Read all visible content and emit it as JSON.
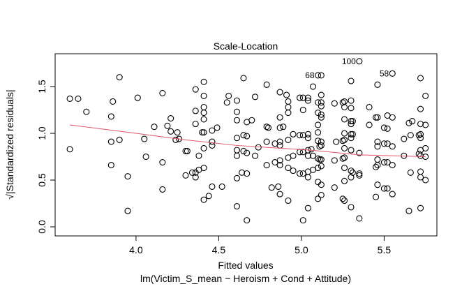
{
  "chart_data": {
    "type": "scatter",
    "title": "Scale-Location",
    "xlabel": "Fitted values",
    "subtitle": "lm(Victim_S_mean ~ Heroism + Cond + Attitude)",
    "ylabel": "√|Standardized residuals|",
    "xlim": [
      3.511,
      5.819
    ],
    "ylim": [
      -0.097,
      1.851
    ],
    "xticks": [
      4.0,
      4.5,
      5.0,
      5.5
    ],
    "xtick_labels": [
      "4.0",
      "4.5",
      "5.0",
      "5.5"
    ],
    "yticks": [
      0.0,
      0.5,
      1.0,
      1.5
    ],
    "ytick_labels": [
      "0.0",
      "0.5",
      "1.0",
      "1.5"
    ],
    "grid": false,
    "smooth_color": "#DF536B",
    "smooth": [
      [
        3.6,
        1.09
      ],
      [
        4.0,
        1.0
      ],
      [
        4.3,
        0.93
      ],
      [
        4.61,
        0.87
      ],
      [
        5.055,
        0.82
      ],
      [
        5.35,
        0.77
      ],
      [
        5.75,
        0.75
      ]
    ],
    "labeled_points": [
      {
        "label": "68",
        "x": 5.1,
        "y": 1.62
      },
      {
        "label": "100",
        "x": 5.35,
        "y": 1.77
      },
      {
        "label": "58",
        "x": 5.55,
        "y": 1.64
      }
    ],
    "points": [
      [
        3.6,
        1.37
      ],
      [
        3.65,
        1.37
      ],
      [
        3.9,
        1.6
      ],
      [
        3.7,
        1.23
      ],
      [
        3.86,
        1.34
      ],
      [
        3.85,
        1.18
      ],
      [
        4.01,
        1.38
      ],
      [
        4.16,
        1.43
      ],
      [
        4.21,
        1.16
      ],
      [
        4.11,
        1.07
      ],
      [
        4.19,
        1.08
      ],
      [
        4.21,
        1.02
      ],
      [
        4.25,
        1.01
      ],
      [
        4.24,
        0.93
      ],
      [
        4.26,
        0.94
      ],
      [
        3.6,
        0.83
      ],
      [
        3.85,
        0.91
      ],
      [
        3.9,
        0.93
      ],
      [
        4.05,
        0.94
      ],
      [
        4.06,
        0.75
      ],
      [
        4.16,
        0.69
      ],
      [
        3.85,
        0.66
      ],
      [
        3.95,
        0.54
      ],
      [
        4.3,
        0.55
      ],
      [
        4.16,
        0.4
      ],
      [
        3.95,
        0.17
      ],
      [
        4.3,
        0.81
      ],
      [
        4.36,
        1.47
      ],
      [
        4.41,
        1.55
      ],
      [
        4.41,
        1.4
      ],
      [
        4.36,
        1.24
      ],
      [
        4.41,
        1.28
      ],
      [
        4.41,
        1.22
      ],
      [
        4.41,
        1.15
      ],
      [
        4.36,
        1.1
      ],
      [
        4.4,
        1.01
      ],
      [
        4.41,
        1.01
      ],
      [
        4.46,
        1.03
      ],
      [
        4.49,
        1.06
      ],
      [
        4.46,
        0.91
      ],
      [
        4.46,
        0.87
      ],
      [
        4.31,
        0.81
      ],
      [
        4.41,
        0.84
      ],
      [
        4.38,
        0.76
      ],
      [
        4.34,
        0.58
      ],
      [
        4.36,
        0.58
      ],
      [
        4.36,
        0.53
      ],
      [
        4.38,
        0.61
      ],
      [
        4.41,
        0.63
      ],
      [
        4.46,
        0.43
      ],
      [
        4.52,
        0.43
      ],
      [
        4.44,
        0.33
      ],
      [
        4.41,
        0.29
      ],
      [
        4.65,
        1.59
      ],
      [
        4.56,
        1.4
      ],
      [
        4.55,
        1.33
      ],
      [
        4.61,
        1.35
      ],
      [
        4.61,
        1.23
      ],
      [
        4.61,
        1.14
      ],
      [
        4.61,
        0.95
      ],
      [
        4.61,
        0.82
      ],
      [
        4.61,
        0.76
      ],
      [
        4.61,
        0.52
      ],
      [
        4.61,
        0.22
      ],
      [
        4.67,
        1.12
      ],
      [
        4.7,
        1.14
      ],
      [
        4.65,
        0.98
      ],
      [
        4.67,
        0.97
      ],
      [
        4.67,
        0.79
      ],
      [
        4.65,
        0.81
      ],
      [
        4.72,
        0.76
      ],
      [
        4.74,
        0.85
      ],
      [
        4.64,
        0.58
      ],
      [
        4.67,
        0.57
      ],
      [
        4.67,
        0.07
      ],
      [
        4.72,
        1.39
      ],
      [
        4.79,
        1.52
      ],
      [
        4.79,
        1.07
      ],
      [
        4.8,
        1.06
      ],
      [
        4.79,
        0.91
      ],
      [
        4.79,
        0.66
      ],
      [
        4.82,
        0.42
      ],
      [
        4.87,
        1.44
      ],
      [
        4.87,
        1.17
      ],
      [
        4.87,
        1.06
      ],
      [
        4.89,
        1.07
      ],
      [
        4.87,
        0.91
      ],
      [
        4.84,
        0.89
      ],
      [
        4.87,
        0.87
      ],
      [
        4.87,
        0.71
      ],
      [
        4.87,
        0.66
      ],
      [
        4.84,
        0.69
      ],
      [
        4.86,
        0.43
      ],
      [
        4.87,
        0.35
      ],
      [
        4.91,
        1.41
      ],
      [
        4.92,
        1.34
      ],
      [
        4.92,
        1.28
      ],
      [
        4.92,
        1.22
      ],
      [
        4.92,
        0.93
      ],
      [
        4.92,
        0.74
      ],
      [
        4.95,
        0.76
      ],
      [
        4.92,
        0.63
      ],
      [
        4.95,
        0.6
      ],
      [
        4.92,
        0.28
      ],
      [
        4.95,
        0.99
      ],
      [
        4.99,
        1.38
      ],
      [
        5.01,
        1.38
      ],
      [
        5.01,
        1.25
      ],
      [
        4.99,
        0.98
      ],
      [
        5.01,
        0.98
      ],
      [
        4.99,
        0.8
      ],
      [
        5.01,
        0.8
      ],
      [
        4.99,
        0.57
      ],
      [
        5.01,
        0.57
      ],
      [
        5.01,
        0.07
      ],
      [
        5.04,
        1.38
      ],
      [
        5.04,
        1.35
      ],
      [
        5.07,
        1.5
      ],
      [
        5.04,
        0.99
      ],
      [
        5.04,
        0.95
      ],
      [
        5.04,
        0.82
      ],
      [
        5.04,
        0.76
      ],
      [
        5.06,
        0.83
      ],
      [
        5.04,
        0.59
      ],
      [
        5.07,
        0.61
      ],
      [
        5.04,
        0.53
      ],
      [
        5.04,
        0.2
      ],
      [
        5.12,
        1.62
      ],
      [
        5.12,
        1.41
      ],
      [
        5.1,
        1.33
      ],
      [
        5.12,
        1.33
      ],
      [
        5.12,
        1.29
      ],
      [
        5.1,
        1.22
      ],
      [
        5.12,
        1.2
      ],
      [
        5.12,
        1.17
      ],
      [
        5.1,
        1.09
      ],
      [
        5.1,
        1.01
      ],
      [
        5.1,
        0.92
      ],
      [
        5.12,
        0.91
      ],
      [
        5.12,
        0.87
      ],
      [
        5.11,
        0.86
      ],
      [
        5.07,
        0.76
      ],
      [
        5.1,
        0.73
      ],
      [
        5.12,
        0.72
      ],
      [
        5.11,
        0.72
      ],
      [
        5.12,
        0.65
      ],
      [
        5.1,
        0.63
      ],
      [
        5.1,
        0.48
      ],
      [
        5.12,
        0.45
      ],
      [
        5.12,
        0.34
      ],
      [
        5.1,
        0.3
      ],
      [
        5.2,
        1.32
      ],
      [
        5.2,
        0.71
      ],
      [
        5.2,
        0.42
      ],
      [
        5.21,
        0.91
      ],
      [
        5.25,
        1.33
      ],
      [
        5.26,
        1.34
      ],
      [
        5.26,
        1.28
      ],
      [
        5.26,
        1.15
      ],
      [
        5.26,
        1.0
      ],
      [
        5.25,
        0.92
      ],
      [
        5.26,
        0.93
      ],
      [
        5.26,
        0.84
      ],
      [
        5.25,
        0.73
      ],
      [
        5.26,
        0.74
      ],
      [
        5.26,
        0.63
      ],
      [
        5.26,
        0.49
      ],
      [
        5.25,
        0.3
      ],
      [
        5.26,
        0.28
      ],
      [
        5.3,
        1.56
      ],
      [
        5.3,
        1.35
      ],
      [
        5.3,
        1.27
      ],
      [
        5.3,
        1.13
      ],
      [
        5.31,
        1.13
      ],
      [
        5.3,
        1.1
      ],
      [
        5.3,
        0.99
      ],
      [
        5.31,
        0.99
      ],
      [
        5.3,
        0.95
      ],
      [
        5.3,
        0.82
      ],
      [
        5.3,
        0.6
      ],
      [
        5.31,
        0.58
      ],
      [
        5.3,
        0.53
      ],
      [
        5.3,
        0.21
      ],
      [
        5.35,
        0.79
      ],
      [
        5.35,
        0.57
      ],
      [
        5.35,
        0.55
      ],
      [
        5.35,
        0.09
      ],
      [
        5.41,
        1.28
      ],
      [
        5.41,
        1.09
      ],
      [
        5.46,
        1.52
      ],
      [
        5.45,
        1.17
      ],
      [
        5.46,
        1.17
      ],
      [
        5.46,
        0.91
      ],
      [
        5.46,
        0.86
      ],
      [
        5.46,
        0.72
      ],
      [
        5.45,
        0.64
      ],
      [
        5.46,
        0.66
      ],
      [
        5.46,
        0.45
      ],
      [
        5.45,
        0.32
      ],
      [
        5.52,
        1.19
      ],
      [
        5.55,
        1.17
      ],
      [
        5.5,
        1.06
      ],
      [
        5.52,
        1.05
      ],
      [
        5.5,
        0.89
      ],
      [
        5.52,
        0.89
      ],
      [
        5.55,
        0.86
      ],
      [
        5.5,
        0.69
      ],
      [
        5.52,
        0.69
      ],
      [
        5.55,
        0.66
      ],
      [
        5.5,
        0.41
      ],
      [
        5.52,
        0.41
      ],
      [
        5.55,
        0.35
      ],
      [
        5.62,
        0.94
      ],
      [
        5.62,
        0.76
      ],
      [
        5.65,
        1.11
      ],
      [
        5.67,
        1.13
      ],
      [
        5.66,
        0.98
      ],
      [
        5.66,
        0.58
      ],
      [
        5.65,
        0.17
      ],
      [
        5.72,
        1.59
      ],
      [
        5.72,
        1.26
      ],
      [
        5.72,
        1.1
      ],
      [
        5.75,
        1.09
      ],
      [
        5.71,
        0.98
      ],
      [
        5.72,
        0.99
      ],
      [
        5.72,
        0.95
      ],
      [
        5.72,
        0.82
      ],
      [
        5.71,
        0.78
      ],
      [
        5.72,
        0.76
      ],
      [
        5.72,
        0.59
      ],
      [
        5.72,
        0.53
      ],
      [
        5.75,
        0.5
      ],
      [
        5.72,
        0.2
      ],
      [
        5.75,
        1.4
      ],
      [
        5.75,
        0.84
      ],
      [
        5.75,
        0.75
      ]
    ]
  }
}
